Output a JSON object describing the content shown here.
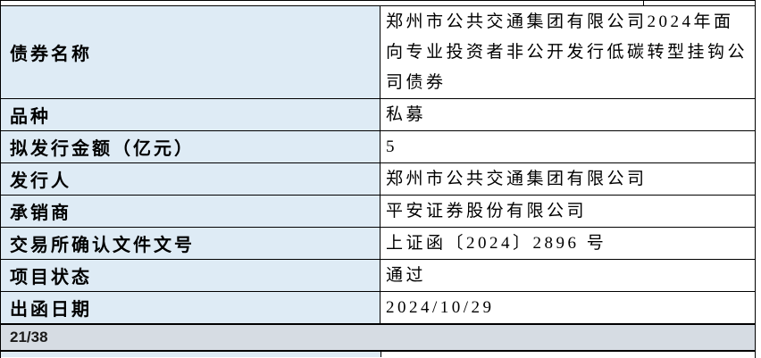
{
  "table": {
    "rows": [
      {
        "label": "债券名称",
        "value": "郑州市公共交通集团有限公司2024年面向专业投资者非公开发行低碳转型挂钩公司债券"
      },
      {
        "label": "品种",
        "value": "私募"
      },
      {
        "label": "拟发行金额（亿元）",
        "value": "5"
      },
      {
        "label": "发行人",
        "value": "郑州市公共交通集团有限公司"
      },
      {
        "label": "承销商",
        "value": "平安证券股份有限公司"
      },
      {
        "label": "交易所确认文件文号",
        "value": "上证函〔2024〕2896 号"
      },
      {
        "label": "项目状态",
        "value": "通过"
      },
      {
        "label": "出函日期",
        "value": "2024/10/29"
      }
    ],
    "pagination": "21/38"
  },
  "colors": {
    "label_bg": "#DEEBF5",
    "value_bg": "#FFFFFF",
    "pagination_bg": "#D6DCE3",
    "border": "#000000",
    "text": "#000000"
  }
}
